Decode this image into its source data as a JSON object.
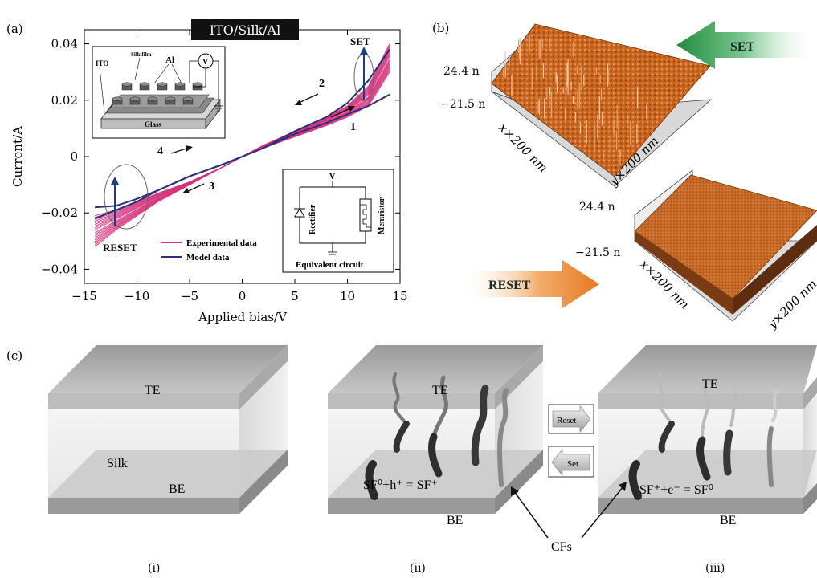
{
  "panel_a": {
    "label": "(a)",
    "title": "ITO/Silk/Al",
    "set_label": "SET",
    "reset_label": "RESET",
    "arrow_numbers": [
      "1",
      "2",
      "3",
      "4"
    ],
    "inset_device": {
      "ito": "ITO",
      "silk_film": "Silk film",
      "al": "Al",
      "glass": "Glass",
      "meter": "V"
    },
    "inset_circuit": {
      "v": "V",
      "rectifier": "Rectifier",
      "memristor": "Memristor",
      "caption": "Equivalent circuit"
    },
    "legend": [
      "Experimental data",
      "Model data"
    ],
    "colors": {
      "experimental": "#d6317a",
      "model": "#2a2f7a"
    }
  },
  "chart_data": {
    "type": "line",
    "xlabel": "Applied bias/V",
    "ylabel": "Current/A",
    "xlim": [
      -15,
      15
    ],
    "ylim": [
      -0.045,
      0.045
    ],
    "x_ticks": [
      "−15",
      "−10",
      "−5",
      "0",
      "5",
      "10",
      "15"
    ],
    "y_ticks": [
      "0.04",
      "0.02",
      "0",
      "−0.02",
      "−0.04"
    ],
    "x_tick_values": [
      -15,
      -10,
      -5,
      0,
      5,
      10,
      15
    ],
    "y_tick_values": [
      0.04,
      0.02,
      0,
      -0.02,
      -0.04
    ],
    "series": [
      {
        "name": "Experimental data",
        "upper": [
          [
            -14,
            -0.021
          ],
          [
            -12,
            -0.019
          ],
          [
            -10,
            -0.016
          ],
          [
            -8,
            -0.013
          ],
          [
            -5,
            -0.009
          ],
          [
            -2,
            -0.004
          ],
          [
            0,
            0
          ],
          [
            2,
            0.004
          ],
          [
            5,
            0.009
          ],
          [
            8,
            0.014
          ],
          [
            10,
            0.018
          ],
          [
            12,
            0.025
          ],
          [
            14,
            0.04
          ]
        ],
        "lower": [
          [
            -14,
            -0.032
          ],
          [
            -12,
            -0.026
          ],
          [
            -10,
            -0.021
          ],
          [
            -8,
            -0.016
          ],
          [
            -5,
            -0.01
          ],
          [
            -2,
            -0.004
          ],
          [
            0,
            0
          ],
          [
            2,
            0.003
          ],
          [
            5,
            0.007
          ],
          [
            8,
            0.011
          ],
          [
            10,
            0.014
          ],
          [
            12,
            0.018
          ],
          [
            14,
            0.03
          ]
        ]
      },
      {
        "name": "Model data",
        "upper": [
          [
            -14,
            -0.018
          ],
          [
            -12,
            -0.0175
          ],
          [
            -10,
            -0.015
          ],
          [
            -8,
            -0.012
          ],
          [
            -5,
            -0.007
          ],
          [
            -2,
            -0.003
          ],
          [
            0,
            0
          ],
          [
            2,
            0.003
          ],
          [
            5,
            0.009
          ],
          [
            8,
            0.014
          ],
          [
            10,
            0.019
          ],
          [
            12,
            0.027
          ],
          [
            14,
            0.038
          ]
        ],
        "lower": [
          [
            -14,
            -0.022
          ],
          [
            -12,
            -0.019
          ],
          [
            -10,
            -0.016
          ],
          [
            -8,
            -0.012
          ],
          [
            -5,
            -0.007
          ],
          [
            -2,
            -0.003
          ],
          [
            0,
            0
          ],
          [
            2,
            0.003
          ],
          [
            5,
            0.008
          ],
          [
            8,
            0.012
          ],
          [
            10,
            0.015
          ],
          [
            12,
            0.018
          ],
          [
            14,
            0.022
          ]
        ]
      }
    ]
  },
  "panel_b": {
    "label": "(b)",
    "set_arrow": "SET",
    "reset_arrow": "RESET",
    "top_map": {
      "zmax": "24.4 n",
      "zmin": "−21.5 n",
      "x_axis": "x×200 nm",
      "y_axis": "y×200 nm"
    },
    "bottom_map": {
      "zmax": "24.4 n",
      "zmin": "−21.5 n",
      "x_axis": "x×200 nm",
      "y_axis": "y×200 nm"
    },
    "colors": {
      "surface": "#c8651e",
      "set": "#2f9e4a",
      "reset": "#e8862a"
    }
  },
  "panel_c": {
    "label": "(c)",
    "cube1": {
      "te": "TE",
      "silk": "Silk",
      "be": "BE",
      "caption": "(i)"
    },
    "cube2": {
      "te": "TE",
      "equation": "SF⁰+h⁺ = SF⁺",
      "be": "BE",
      "caption": "(ii)"
    },
    "cube3": {
      "te": "TE",
      "equation": "SF⁺+e⁻ = SF⁰",
      "be": "BE",
      "caption": "(iii)"
    },
    "reset_button": "Reset",
    "set_button": "Set",
    "cfs_label": "CFs"
  }
}
